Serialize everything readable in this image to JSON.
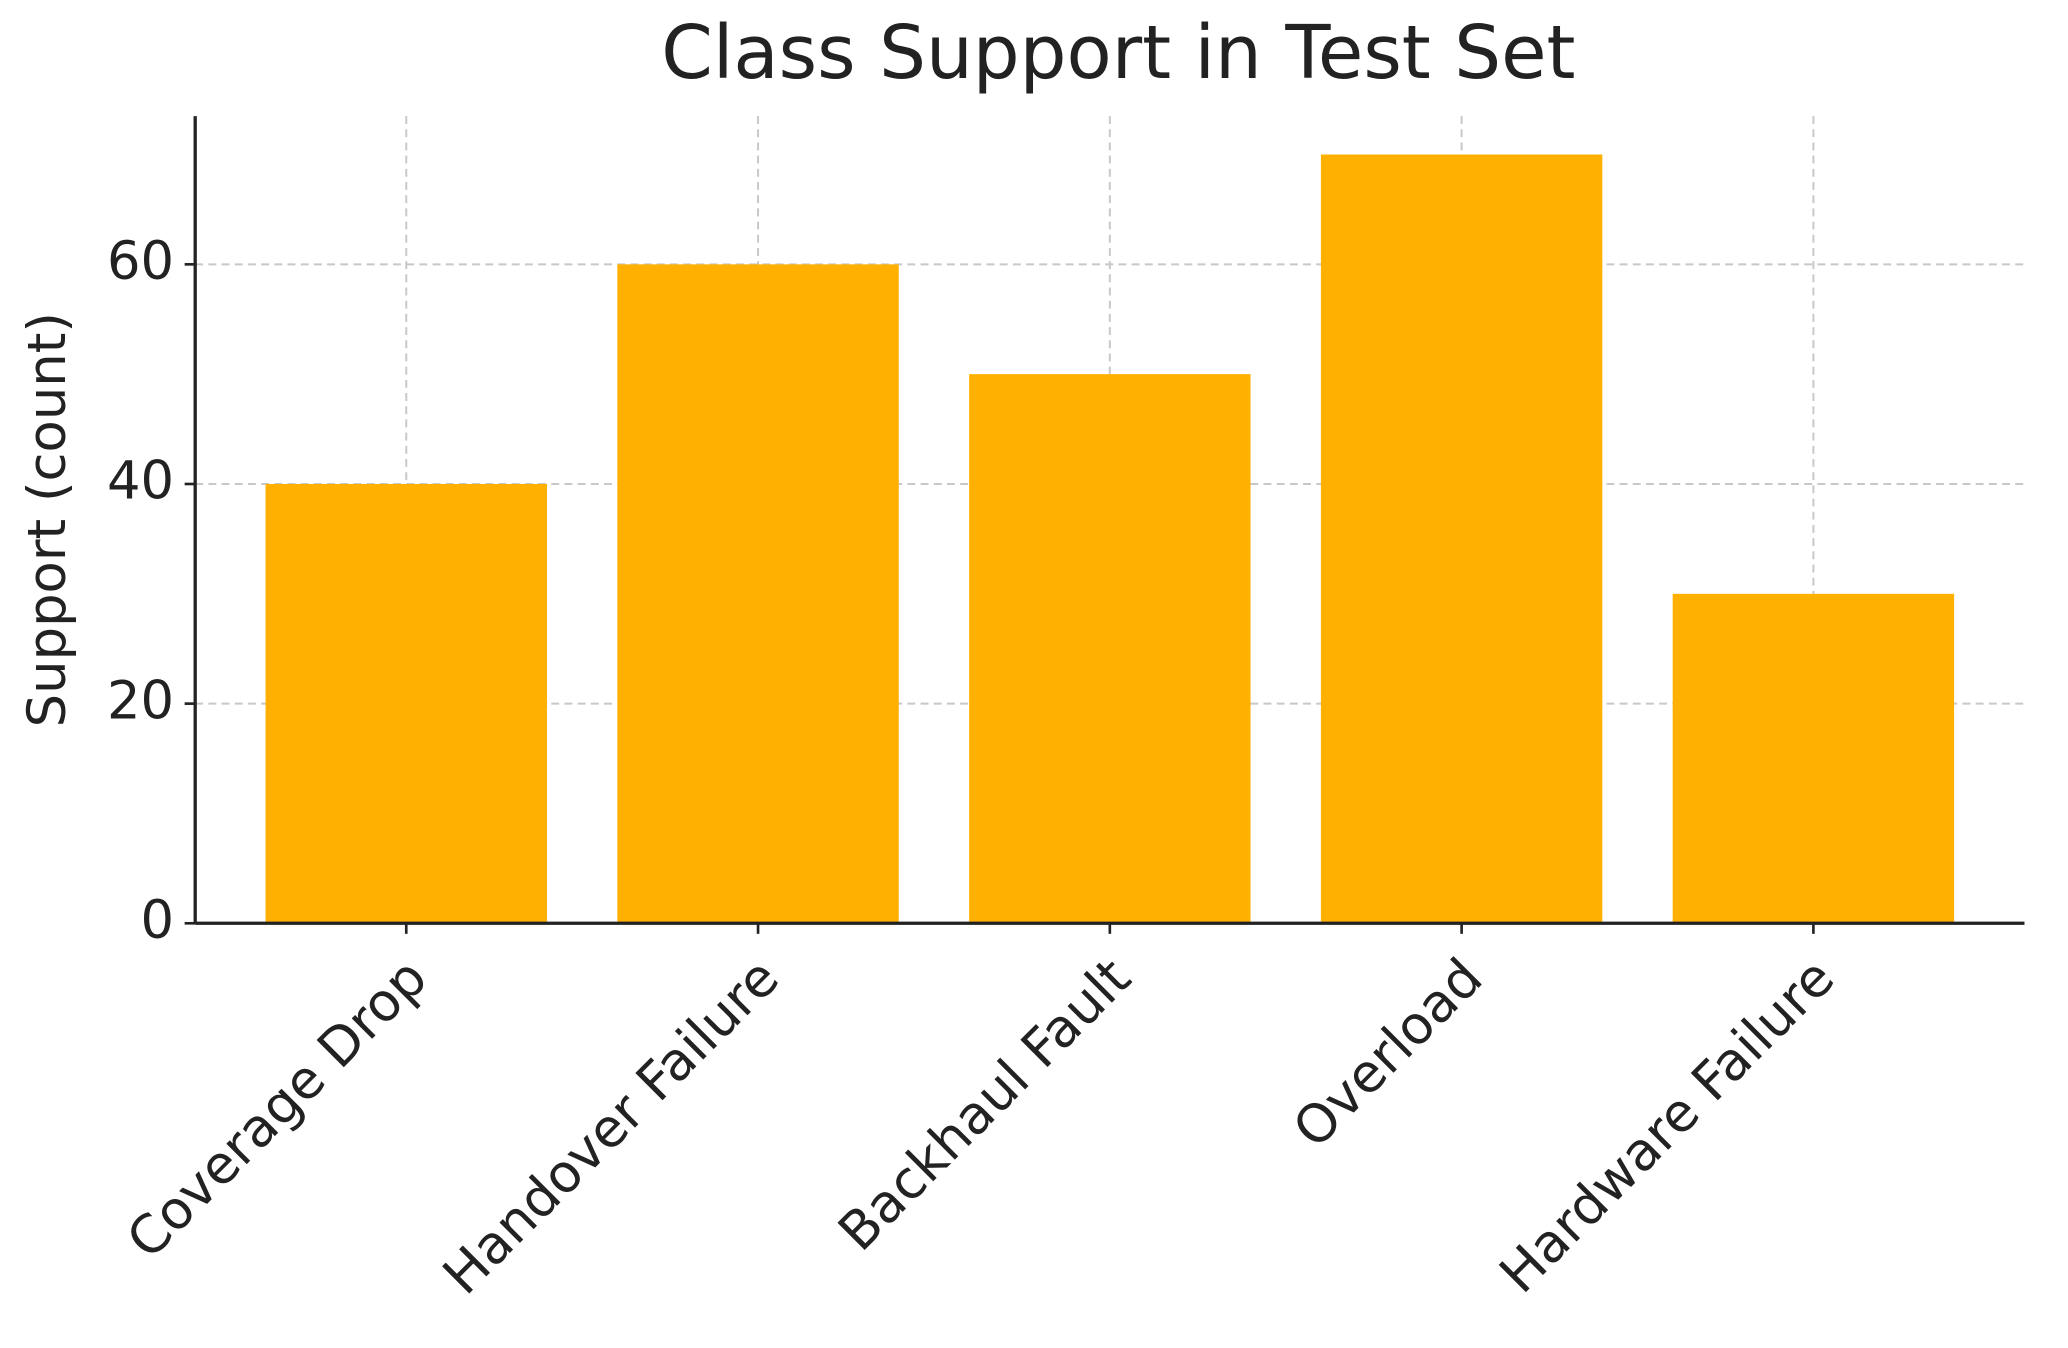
{
  "chart_data": {
    "type": "bar",
    "title": "Class Support in Test Set",
    "y_label": "Support (count)",
    "categories": [
      "Coverage Drop",
      "Handover Failure",
      "Backhaul Fault",
      "Overload",
      "Hardware Failure"
    ],
    "values": [
      40,
      60,
      50,
      70,
      30
    ],
    "color": "#ffb000",
    "ylim": [
      0,
      73.5
    ],
    "yticks": [
      0,
      20,
      40,
      60
    ],
    "grid": true
  }
}
